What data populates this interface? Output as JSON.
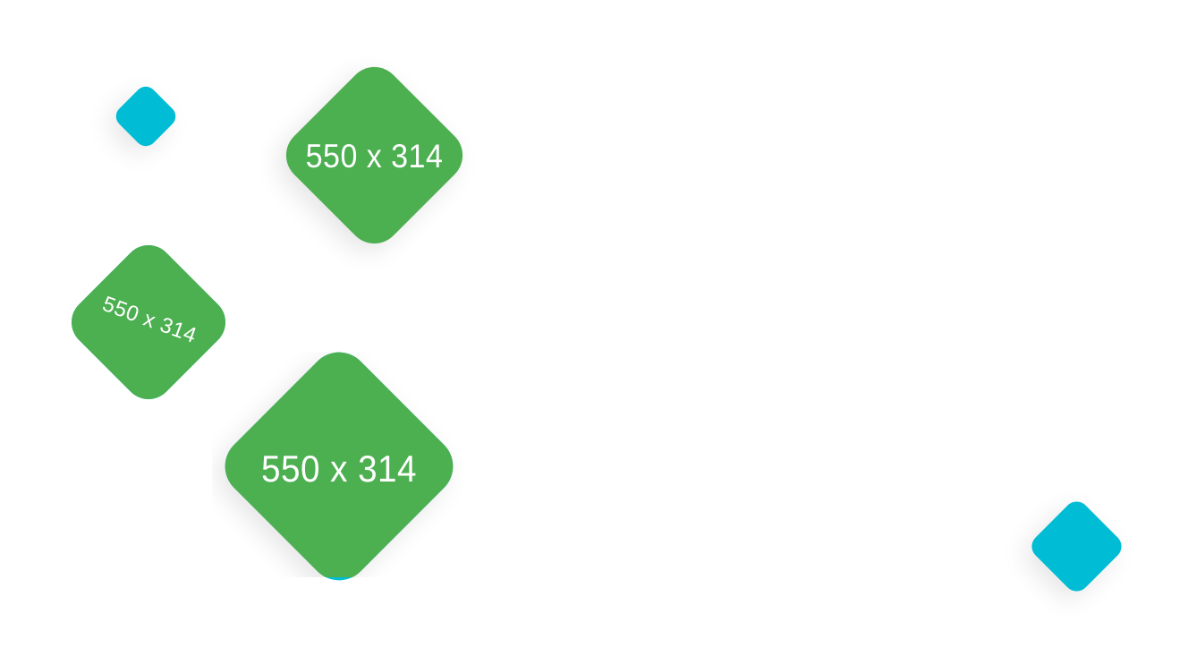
{
  "tiles": [
    {
      "placeholder": "550 x 314"
    },
    {
      "placeholder": "550 x 314"
    },
    {
      "placeholder": "550 x 314"
    }
  ],
  "colors": {
    "accent_blue": "#00bcd4",
    "accent_green": "#4caf50",
    "background": "#ffffff",
    "text": "#ffffff"
  }
}
